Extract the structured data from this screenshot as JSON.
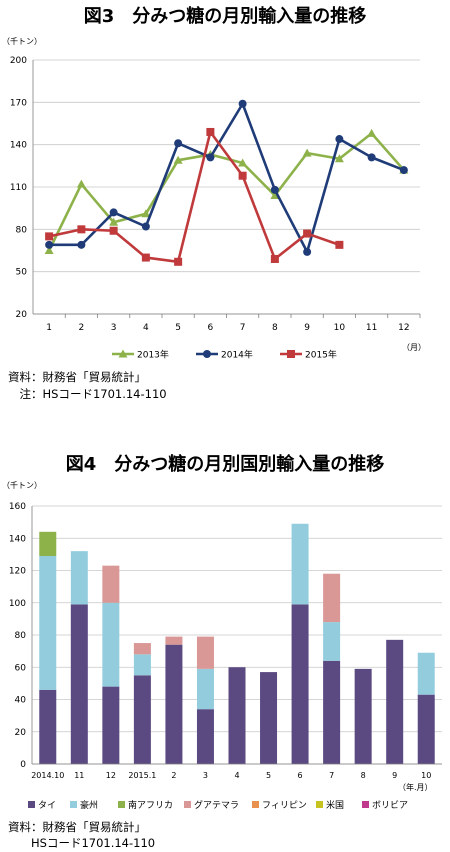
{
  "chart1": {
    "title": "図3　分みつ糖の月別輸入量の推移",
    "yunit": "（千トン）",
    "xunit": "（月）",
    "source_label": "資料：財務省「貿易統計」",
    "note_label": "　注：HSコード1701.14-110"
  },
  "chart2": {
    "title": "図4　分みつ糖の月別国別輸入量の推移",
    "yunit": "（千トン）",
    "xunit": "（年.月）",
    "source_label": "資料：財務省「貿易統計」",
    "note_label": "　　HSコード1701.14-110"
  },
  "chart_data": [
    {
      "type": "line",
      "x": [
        "1",
        "2",
        "3",
        "4",
        "5",
        "6",
        "7",
        "8",
        "9",
        "10",
        "11",
        "12"
      ],
      "ylim": [
        20,
        200
      ],
      "yticks": [
        20,
        50,
        80,
        110,
        140,
        170,
        200
      ],
      "grid": true,
      "legend_position": "bottom",
      "series": [
        {
          "name": "2013年",
          "color": "#8db24a",
          "marker": "triangle",
          "values": [
            65,
            112,
            85,
            91,
            129,
            133,
            127,
            104,
            134,
            130,
            148,
            122
          ]
        },
        {
          "name": "2014年",
          "color": "#1f3c78",
          "marker": "circle",
          "values": [
            69,
            69,
            92,
            82,
            141,
            131,
            169,
            108,
            64,
            144,
            131,
            122
          ]
        },
        {
          "name": "2015年",
          "color": "#c0393b",
          "marker": "square",
          "values": [
            75,
            80,
            79,
            60,
            57,
            149,
            118,
            59,
            77,
            69,
            null,
            null
          ]
        }
      ]
    },
    {
      "type": "bar",
      "stacked": true,
      "categories": [
        "2014.10",
        "11",
        "12",
        "2015.1",
        "2",
        "3",
        "4",
        "5",
        "6",
        "7",
        "8",
        "9",
        "10"
      ],
      "ylim": [
        0,
        160
      ],
      "yticks": [
        0,
        20,
        40,
        60,
        80,
        100,
        120,
        140,
        160
      ],
      "grid": true,
      "legend_position": "bottom",
      "series": [
        {
          "name": "タイ",
          "color": "#5b4a82",
          "values": [
            46,
            99,
            48,
            55,
            74,
            34,
            60,
            57,
            99,
            64,
            59,
            77,
            43
          ]
        },
        {
          "name": "豪州",
          "color": "#93cddd",
          "values": [
            83,
            33,
            52,
            13,
            0,
            25,
            0,
            0,
            50,
            24,
            0,
            0,
            26
          ]
        },
        {
          "name": "南アフリカ",
          "color": "#8db24a",
          "values": [
            15,
            0,
            0,
            0,
            0,
            0,
            0,
            0,
            0,
            0,
            0,
            0,
            0
          ]
        },
        {
          "name": "グアテマラ",
          "color": "#d99795",
          "values": [
            0,
            0,
            23,
            7,
            5,
            20,
            0,
            0,
            0,
            30,
            0,
            0,
            0
          ]
        },
        {
          "name": "フィリピン",
          "color": "#e8914f",
          "values": [
            0,
            0,
            0,
            0,
            0,
            0,
            0,
            0,
            0,
            0,
            0,
            0,
            0
          ]
        },
        {
          "name": "米国",
          "color": "#c6c220",
          "values": [
            0,
            0,
            0,
            0,
            0,
            0,
            0,
            0,
            0,
            0,
            0,
            0,
            0
          ]
        },
        {
          "name": "ボリビア",
          "color": "#c0398d",
          "values": [
            0,
            0,
            0,
            0,
            0,
            0,
            0,
            0,
            0,
            0,
            0,
            0,
            0
          ]
        }
      ]
    }
  ]
}
